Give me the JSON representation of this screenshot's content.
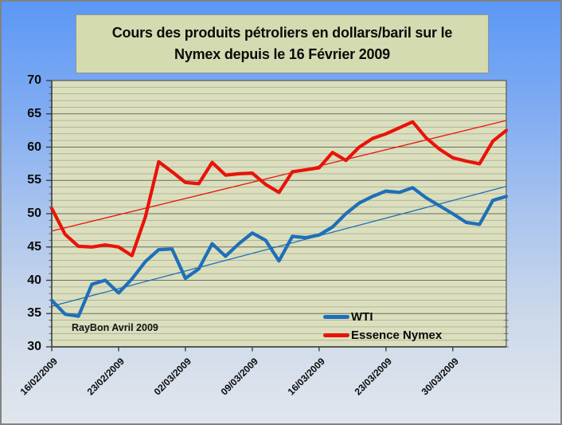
{
  "title": {
    "line1": "Cours des produits pétroliers en dollars/baril sur le",
    "line2": "Nymex  depuis le 16 Février 2009"
  },
  "annotation": "RayBon Avril 2009",
  "colors": {
    "background_top": "#5b98f5",
    "background_bottom": "#e0e6ed",
    "title_box_fill": "#d5dbb1",
    "plot_background": "#dbdfbe",
    "major_gridline": "#6a6e60",
    "minor_gridline": "#acb194",
    "wti_blue": "#1e6fb8",
    "essence_red": "#e91309"
  },
  "chart_data": {
    "type": "line",
    "title": "Cours des produits pétroliers en dollars/baril sur le Nymex depuis le 16 Février 2009",
    "xlabel": "",
    "ylabel": "",
    "ylim": [
      30,
      70
    ],
    "y_ticks": [
      70,
      65,
      60,
      55,
      50,
      45,
      40,
      35,
      30
    ],
    "y_minor_step": 1,
    "grid": true,
    "legend_position": "bottom-right-inside",
    "x_tick_labels": [
      "16/02/2009",
      "23/02/2009",
      "02/03/2009",
      "09/03/2009",
      "16/03/2009",
      "23/03/2009",
      "30/03/2009"
    ],
    "x_ticks_every_n_points": 5,
    "series": [
      {
        "name": "WTI",
        "color": "#1e6fb8",
        "values": [
          37.0,
          34.9,
          34.6,
          39.4,
          40.0,
          38.1,
          40.2,
          42.8,
          44.6,
          44.7,
          40.3,
          41.7,
          45.5,
          43.6,
          45.5,
          47.1,
          46.0,
          42.9,
          46.6,
          46.4,
          46.8,
          48.0,
          50.0,
          51.6,
          52.6,
          53.4,
          53.2,
          53.9,
          52.4,
          51.2,
          50.0,
          48.7,
          48.4,
          52.0,
          52.6
        ]
      },
      {
        "name": "Essence Nymex",
        "color": "#e91309",
        "values": [
          50.8,
          46.9,
          45.1,
          45.0,
          45.3,
          45.0,
          43.7,
          49.5,
          57.8,
          56.3,
          54.7,
          54.5,
          57.7,
          55.8,
          56.0,
          56.1,
          54.4,
          53.2,
          56.3,
          56.6,
          56.9,
          59.2,
          58.0,
          60.0,
          61.3,
          62.0,
          62.9,
          63.8,
          61.4,
          59.7,
          58.4,
          57.9,
          57.5,
          60.9,
          62.5
        ]
      }
    ],
    "trendlines": [
      {
        "series": "WTI",
        "color": "#1e6fb8",
        "start_value": 36.1,
        "end_value": 54.1
      },
      {
        "series": "Essence Nymex",
        "color": "#e91309",
        "start_value": 47.4,
        "end_value": 64.0
      }
    ]
  }
}
